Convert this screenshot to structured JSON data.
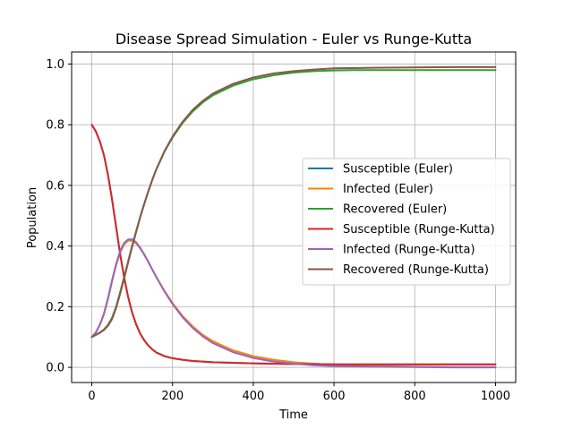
{
  "chart_data": {
    "type": "line",
    "title": "Disease Spread Simulation - Euler vs Runge-Kutta",
    "xlabel": "Time",
    "ylabel": "Population",
    "xlim": [
      -50,
      1050
    ],
    "ylim": [
      -0.05,
      1.04
    ],
    "xticks": [
      0,
      200,
      400,
      600,
      800,
      1000
    ],
    "yticks": [
      0.0,
      0.2,
      0.4,
      0.6,
      0.8,
      1.0
    ],
    "xtick_labels": [
      "0",
      "200",
      "400",
      "600",
      "800",
      "1000"
    ],
    "ytick_labels": [
      "0.0",
      "0.2",
      "0.4",
      "0.6",
      "0.8",
      "1.0"
    ],
    "grid": true,
    "legend_position": "center-right",
    "x": [
      0,
      10,
      20,
      30,
      40,
      50,
      60,
      70,
      80,
      90,
      100,
      110,
      120,
      130,
      140,
      150,
      160,
      180,
      200,
      225,
      250,
      275,
      300,
      350,
      400,
      450,
      500,
      550,
      600,
      650,
      700,
      800,
      900,
      1000
    ],
    "series": [
      {
        "name": "Susceptible (Euler)",
        "color": "#1f77b4",
        "values": [
          0.8,
          0.778,
          0.745,
          0.7,
          0.635,
          0.555,
          0.465,
          0.375,
          0.297,
          0.232,
          0.18,
          0.141,
          0.111,
          0.089,
          0.072,
          0.059,
          0.049,
          0.037,
          0.03,
          0.025,
          0.021,
          0.019,
          0.017,
          0.015,
          0.013,
          0.012,
          0.011,
          0.011,
          0.01,
          0.01,
          0.01,
          0.01,
          0.01,
          0.01
        ]
      },
      {
        "name": "Infected (Euler)",
        "color": "#ff7f0e",
        "values": [
          0.1,
          0.115,
          0.14,
          0.175,
          0.225,
          0.282,
          0.336,
          0.378,
          0.405,
          0.418,
          0.418,
          0.409,
          0.392,
          0.371,
          0.347,
          0.322,
          0.298,
          0.252,
          0.212,
          0.169,
          0.135,
          0.107,
          0.086,
          0.056,
          0.037,
          0.025,
          0.017,
          0.012,
          0.008,
          0.006,
          0.004,
          0.002,
          0.001,
          0.001
        ]
      },
      {
        "name": "Recovered (Euler)",
        "color": "#2ca02c",
        "values": [
          0.1,
          0.107,
          0.115,
          0.125,
          0.14,
          0.163,
          0.199,
          0.247,
          0.298,
          0.35,
          0.402,
          0.45,
          0.497,
          0.54,
          0.581,
          0.619,
          0.653,
          0.711,
          0.758,
          0.806,
          0.844,
          0.874,
          0.897,
          0.929,
          0.95,
          0.963,
          0.972,
          0.977,
          0.979,
          0.98,
          0.98,
          0.98,
          0.98,
          0.98
        ]
      },
      {
        "name": "Susceptible (Runge-Kutta)",
        "color": "#d62728",
        "values": [
          0.8,
          0.778,
          0.745,
          0.7,
          0.635,
          0.555,
          0.465,
          0.375,
          0.297,
          0.232,
          0.18,
          0.141,
          0.111,
          0.089,
          0.072,
          0.059,
          0.049,
          0.037,
          0.03,
          0.025,
          0.021,
          0.019,
          0.017,
          0.015,
          0.013,
          0.012,
          0.011,
          0.011,
          0.01,
          0.01,
          0.01,
          0.01,
          0.01,
          0.01
        ]
      },
      {
        "name": "Infected (Runge-Kutta)",
        "color": "#9467bd",
        "values": [
          0.1,
          0.115,
          0.141,
          0.177,
          0.228,
          0.286,
          0.34,
          0.383,
          0.41,
          0.422,
          0.422,
          0.412,
          0.394,
          0.372,
          0.348,
          0.322,
          0.297,
          0.25,
          0.209,
          0.165,
          0.13,
          0.102,
          0.08,
          0.05,
          0.031,
          0.019,
          0.012,
          0.007,
          0.004,
          0.003,
          0.002,
          0.001,
          0.0,
          0.0
        ]
      },
      {
        "name": "Recovered (Runge-Kutta)",
        "color": "#8c564b",
        "values": [
          0.1,
          0.107,
          0.114,
          0.123,
          0.137,
          0.159,
          0.195,
          0.242,
          0.293,
          0.346,
          0.398,
          0.447,
          0.495,
          0.539,
          0.58,
          0.619,
          0.654,
          0.713,
          0.761,
          0.81,
          0.849,
          0.879,
          0.903,
          0.935,
          0.956,
          0.969,
          0.977,
          0.982,
          0.986,
          0.987,
          0.988,
          0.989,
          0.99,
          0.99
        ]
      }
    ]
  }
}
